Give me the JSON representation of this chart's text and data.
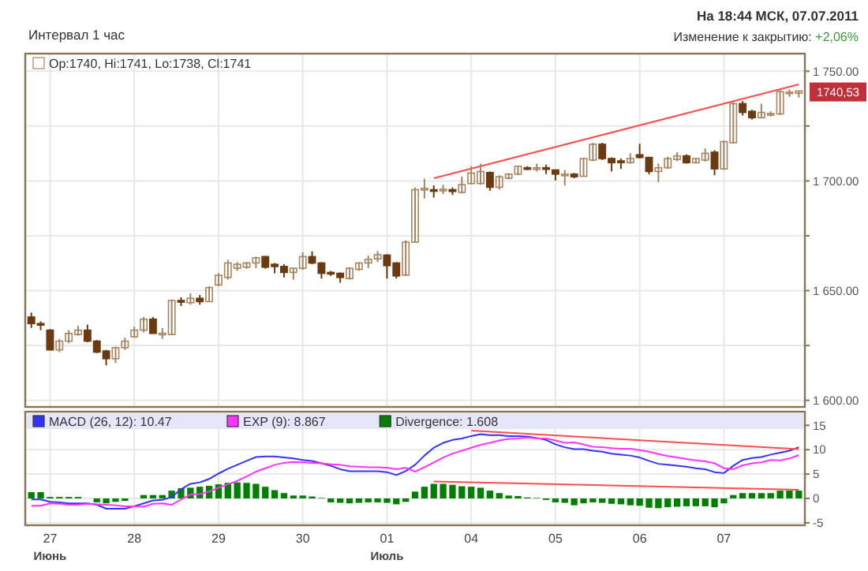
{
  "chart_data": [
    {
      "type": "candlestick",
      "subtitle": "Интервал 1 час",
      "annotations": [
        "На 18:44 МСК, 07.07.2011",
        "Изменение к закрытию: +2,06%",
        {
          "text": "1740,53",
          "y": 1740.53
        }
      ],
      "categories": [
        null,
        null,
        null,
        null,
        null,
        null,
        null,
        null,
        null,
        null,
        null,
        null,
        null,
        null,
        null,
        null,
        null,
        null,
        null,
        null,
        null,
        null,
        null,
        null,
        null,
        null,
        null,
        null,
        null,
        null,
        null,
        null,
        null,
        null,
        null,
        null,
        null,
        null,
        null,
        null,
        null,
        null,
        null,
        null,
        null,
        null,
        null,
        null,
        null,
        null,
        null,
        null,
        null,
        null,
        null,
        null,
        null,
        null,
        null,
        null,
        null,
        null,
        null,
        null,
        null,
        null,
        null,
        null,
        null,
        null,
        null,
        null,
        null,
        null,
        null,
        null,
        null,
        null,
        null,
        null,
        null,
        null,
        null
      ],
      "ylim": [
        1597,
        1758
      ],
      "yticks": [
        {
          "value": 1600,
          "label": "1 600.00"
        },
        {
          "value": 1625,
          "label": null
        },
        {
          "value": 1650,
          "label": "1 650.00"
        },
        {
          "value": 1675,
          "label": null
        },
        {
          "value": 1700,
          "label": "1 700.00"
        },
        {
          "value": 1725,
          "label": null
        },
        {
          "value": 1750,
          "label": "1 750.00"
        }
      ],
      "grid": true,
      "legend": "top left",
      "tick_labels": "y",
      "series": [
        {
          "name": "Op:1740, Hi:1741, Lo:1738, Cl:1741",
          "colors": [
            "#6b3a10",
            "#6b3a10",
            "#6b3a10",
            "#a68660",
            "#a68660",
            "#a68660",
            "#6b3a10",
            "#6b3a10",
            "#6b3a10",
            "#a68660",
            "#a68660",
            "#a68660",
            "#a68660",
            "#6b3a10",
            "#a68660",
            "#a68660",
            "#6b3a10",
            "#a68660",
            "#6b3a10",
            "#a68660",
            "#a68660",
            "#a68660",
            "#a68660",
            "#a68660",
            "#a68660",
            "#6b3a10",
            "#6b3a10",
            "#6b3a10",
            "#a68660",
            "#a68660",
            "#6b3a10",
            "#6b3a10",
            "#6b3a10",
            "#6b3a10",
            "#a68660",
            "#a68660",
            "#a68660",
            "#a68660",
            "#6b3a10",
            "#6b3a10",
            "#a68660",
            "#a68660",
            "#a68660",
            "#6b3a10",
            "#a68660",
            "#6b3a10",
            "#a68660",
            "#a68660",
            "#a68660",
            "#6b3a10",
            "#a68660",
            "#a68660",
            "#a68660",
            "#6b3a10",
            "#a68660",
            "#6b3a10",
            "#6b3a10",
            "#a68660",
            "#6b3a10",
            "#a68660",
            "#a68660",
            "#6b3a10",
            "#6b3a10",
            "#6b3a10",
            "#a68660",
            "#6b3a10",
            "#6b3a10",
            "#a68660",
            "#a68660",
            "#a68660",
            "#6b3a10",
            "#a68660",
            "#a68660",
            "#6b3a10",
            "#a68660",
            "#a68660",
            "#6b3a10",
            "#6b3a10",
            "#a68660",
            "#a68660",
            "#a68660",
            "#a68660",
            "#a68660"
          ],
          "ohlc": [
            [
              1638,
              1640,
              1633,
              1635
            ],
            [
              1635,
              1636,
              1632,
              1634.8
            ],
            [
              1632,
              1632.5,
              1623,
              1623
            ],
            [
              1623,
              1628,
              1622,
              1627
            ],
            [
              1627,
              1632,
              1626,
              1630.5
            ],
            [
              1630,
              1634,
              1629.5,
              1632
            ],
            [
              1632,
              1634.5,
              1626.5,
              1627
            ],
            [
              1627,
              1627.5,
              1621.5,
              1622
            ],
            [
              1622.5,
              1623,
              1616,
              1619
            ],
            [
              1619,
              1624.5,
              1617,
              1624
            ],
            [
              1624,
              1628.6,
              1623,
              1627
            ],
            [
              1629,
              1633.6,
              1628.5,
              1632
            ],
            [
              1632,
              1638,
              1631,
              1637
            ],
            [
              1637,
              1638,
              1630.5,
              1630.5
            ],
            [
              1630.4,
              1633,
              1628,
              1630.6
            ],
            [
              1630,
              1646,
              1629.8,
              1645.5
            ],
            [
              1645.5,
              1647,
              1643,
              1645
            ],
            [
              1644.5,
              1648.8,
              1643.6,
              1646.5
            ],
            [
              1646.5,
              1648,
              1643.6,
              1645
            ],
            [
              1645,
              1652,
              1644.8,
              1651.4
            ],
            [
              1652.6,
              1658,
              1652,
              1657
            ],
            [
              1656,
              1664,
              1655,
              1662.6
            ],
            [
              1660.2,
              1663,
              1659,
              1662
            ],
            [
              1660.7,
              1663,
              1660,
              1662.6
            ],
            [
              1662.6,
              1665.5,
              1660.2,
              1665
            ],
            [
              1665.5,
              1665.8,
              1660,
              1660.7
            ],
            [
              1662,
              1662.6,
              1657.9,
              1661
            ],
            [
              1661,
              1662,
              1656,
              1658.3
            ],
            [
              1658.3,
              1660.4,
              1655,
              1660.2
            ],
            [
              1660.2,
              1667.5,
              1659.5,
              1665.5
            ],
            [
              1665.5,
              1667.9,
              1662,
              1662.6
            ],
            [
              1662.6,
              1663,
              1655.5,
              1657.9
            ],
            [
              1658.3,
              1659,
              1656.7,
              1658
            ],
            [
              1657.9,
              1658.3,
              1653.6,
              1656
            ],
            [
              1655.5,
              1660.7,
              1655,
              1660.2
            ],
            [
              1659.7,
              1663,
              1659,
              1662.6
            ],
            [
              1662.6,
              1666,
              1660.2,
              1664.3
            ],
            [
              1664.5,
              1668,
              1663,
              1666.4
            ],
            [
              1666.2,
              1666.6,
              1655.5,
              1661.4
            ],
            [
              1662.6,
              1663,
              1655.5,
              1656.7
            ],
            [
              1657.1,
              1673,
              1656.7,
              1672.1
            ],
            [
              1672.1,
              1697,
              1672,
              1696
            ],
            [
              1696,
              1701,
              1692,
              1696.6
            ],
            [
              1696,
              1698,
              1692.4,
              1695.5
            ],
            [
              1695.8,
              1698.3,
              1694,
              1696.2
            ],
            [
              1696,
              1697,
              1693.6,
              1695.2
            ],
            [
              1694.8,
              1702,
              1694.3,
              1698.3
            ],
            [
              1698.8,
              1706.7,
              1698.5,
              1703.6
            ],
            [
              1698.8,
              1707.9,
              1698.3,
              1704.3
            ],
            [
              1703.8,
              1704.3,
              1695.5,
              1697.1
            ],
            [
              1697.1,
              1702.6,
              1696,
              1701.9
            ],
            [
              1701.2,
              1703.6,
              1700.7,
              1703.1
            ],
            [
              1703.1,
              1707,
              1702.6,
              1706.7
            ],
            [
              1706,
              1706.7,
              1705,
              1705.7
            ],
            [
              1705.7,
              1707.9,
              1704.3,
              1706
            ],
            [
              1706,
              1707.4,
              1703.1,
              1705.8
            ],
            [
              1705,
              1705.2,
              1700.2,
              1703.1
            ],
            [
              1703,
              1705,
              1697.9,
              1703.1
            ],
            [
              1703.1,
              1703.6,
              1701.2,
              1701.9
            ],
            [
              1702.1,
              1710.5,
              1701.9,
              1710.2
            ],
            [
              1709.5,
              1717.4,
              1709,
              1716.7
            ],
            [
              1716.7,
              1717.4,
              1709.5,
              1710.2
            ],
            [
              1710.2,
              1710.7,
              1704.3,
              1708.3
            ],
            [
              1709.1,
              1710.2,
              1705.5,
              1709
            ],
            [
              1708.3,
              1712.6,
              1707.9,
              1710.2
            ],
            [
              1711.9,
              1716.9,
              1710.2,
              1710.7
            ],
            [
              1710.7,
              1711,
              1703,
              1704.3
            ],
            [
              1704.3,
              1707.9,
              1699.5,
              1706
            ],
            [
              1706,
              1711,
              1705.5,
              1710.2
            ],
            [
              1709.8,
              1713.1,
              1709,
              1711.4
            ],
            [
              1711.4,
              1712.1,
              1707.9,
              1708.3
            ],
            [
              1708.3,
              1710.5,
              1707.9,
              1710.2
            ],
            [
              1709.5,
              1714.8,
              1708.8,
              1712.6
            ],
            [
              1713.1,
              1714,
              1702.6,
              1705.5
            ],
            [
              1705.5,
              1718.4,
              1705,
              1717.9
            ],
            [
              1717.4,
              1736,
              1717,
              1735.2
            ],
            [
              1735.2,
              1736.4,
              1729.8,
              1731.2
            ],
            [
              1731.7,
              1732.4,
              1728,
              1728.8
            ],
            [
              1728.8,
              1735.2,
              1728.6,
              1731.2
            ],
            [
              1730.4,
              1731.7,
              1729.3,
              1730.7
            ],
            [
              1730.5,
              1741.4,
              1730,
              1740.7
            ],
            [
              1740,
              1741.7,
              1738.3,
              1740.5
            ],
            [
              1740,
              1741,
              1738,
              1741
            ]
          ]
        },
        {
          "type": "line",
          "color": "#ff4d4d",
          "values": [
            null,
            null,
            null,
            null,
            null,
            null,
            null,
            null,
            null,
            null,
            null,
            null,
            null,
            null,
            null,
            null,
            null,
            null,
            null,
            null,
            null,
            null,
            null,
            null,
            null,
            null,
            null,
            null,
            null,
            null,
            null,
            null,
            null,
            null,
            null,
            null,
            null,
            null,
            null,
            null,
            null,
            null,
            null,
            1701.2,
            null,
            null,
            null,
            null,
            null,
            null,
            null,
            null,
            null,
            null,
            null,
            null,
            null,
            null,
            null,
            null,
            null,
            null,
            null,
            null,
            null,
            null,
            null,
            null,
            null,
            null,
            null,
            null,
            null,
            null,
            null,
            null,
            null,
            null,
            null,
            null,
            null,
            null,
            1744
          ]
        }
      ]
    },
    {
      "type": "line",
      "categories": [
        null,
        null,
        "27\nИюнь",
        null,
        null,
        null,
        null,
        null,
        null,
        null,
        null,
        "28",
        null,
        null,
        null,
        null,
        null,
        null,
        null,
        null,
        "29",
        null,
        null,
        null,
        null,
        null,
        null,
        null,
        null,
        "30",
        null,
        null,
        null,
        null,
        null,
        null,
        null,
        null,
        "01\nИюль",
        null,
        null,
        null,
        null,
        null,
        null,
        null,
        null,
        "04",
        null,
        null,
        null,
        null,
        null,
        null,
        null,
        null,
        "05",
        null,
        null,
        null,
        null,
        null,
        null,
        null,
        null,
        "06",
        null,
        null,
        null,
        null,
        null,
        null,
        null,
        null,
        "07",
        null,
        null,
        null,
        null,
        null,
        null,
        null,
        null
      ],
      "ylim": [
        -5.5,
        17.8
      ],
      "yticks": [
        -5,
        0,
        5,
        10,
        15
      ],
      "grid": true,
      "legend": "top",
      "series": [
        {
          "name": "MACD (26, 12): 10.47",
          "color": "#3333ff",
          "values": [
            -0.2,
            -0.2,
            -0.7,
            -0.8,
            -1.0,
            -1.0,
            -1.0,
            -1.3,
            -2.1,
            -2.1,
            -2.1,
            -1.6,
            -1.0,
            -0.4,
            -0.3,
            0.3,
            1.9,
            3.0,
            3.3,
            4.0,
            5.1,
            6.1,
            6.9,
            7.7,
            8.5,
            8.6,
            8.6,
            8.4,
            8.2,
            7.9,
            7.7,
            7.2,
            6.7,
            6.0,
            5.6,
            5.6,
            5.6,
            5.6,
            5.4,
            4.8,
            5.6,
            6.9,
            8.8,
            10.4,
            11.4,
            12.0,
            12.3,
            12.8,
            13.2,
            13.0,
            13.0,
            12.8,
            12.8,
            12.7,
            12.4,
            12.0,
            11.1,
            10.5,
            10.1,
            10.1,
            9.8,
            9.6,
            9.2,
            9.0,
            8.8,
            8.4,
            7.7,
            7.1,
            6.9,
            6.7,
            6.5,
            6.2,
            6.0,
            5.4,
            5.2,
            6.7,
            7.9,
            8.3,
            8.5,
            9.0,
            9.4,
            9.8,
            10.5
          ]
        },
        {
          "name": "EXP (9): 8.867",
          "color": "#ff33ff",
          "values": [
            -1.5,
            -1.5,
            -1.0,
            -1.1,
            -1.3,
            -1.3,
            -1.1,
            -1.2,
            -1.3,
            -1.4,
            -1.6,
            -1.6,
            -1.7,
            -1.1,
            -1.0,
            -1.3,
            -0.2,
            0.8,
            0.9,
            1.4,
            2.2,
            2.9,
            3.6,
            4.5,
            5.5,
            6.2,
            6.9,
            7.3,
            7.5,
            7.4,
            7.3,
            7.2,
            7.0,
            6.9,
            6.6,
            6.5,
            6.4,
            6.4,
            6.3,
            6.0,
            6.3,
            5.5,
            6.4,
            7.4,
            8.4,
            9.2,
            9.8,
            10.4,
            11.0,
            11.4,
            11.9,
            12.2,
            12.3,
            12.5,
            12.3,
            12.3,
            11.9,
            11.4,
            11.5,
            11.1,
            10.6,
            10.5,
            10.3,
            10.2,
            10.2,
            9.9,
            9.6,
            9.1,
            8.7,
            8.4,
            8.1,
            7.8,
            7.6,
            7.2,
            6.2,
            6.0,
            6.8,
            7.2,
            7.4,
            7.9,
            7.8,
            8.2,
            8.9
          ]
        },
        {
          "name": "Divergence: 1.608",
          "type": "bar",
          "color": "#008000",
          "values": [
            1.3,
            1.3,
            0.3,
            0.3,
            0.3,
            0.3,
            0,
            -0.8,
            -1.0,
            -0.7,
            -0.5,
            0,
            0.7,
            0.7,
            0.7,
            1.6,
            2.1,
            2.2,
            2.4,
            2.6,
            2.9,
            3.2,
            3.3,
            3.2,
            3.0,
            2.4,
            1.7,
            1.1,
            0.6,
            0.6,
            0.4,
            0.1,
            -0.8,
            -0.9,
            -1.0,
            -0.9,
            -0.8,
            -0.8,
            -0.9,
            -1.2,
            -0.7,
            1.4,
            2.4,
            3.0,
            3.0,
            2.8,
            2.5,
            2.4,
            2.2,
            1.6,
            1.1,
            0.6,
            0.5,
            0.2,
            0.1,
            -0.3,
            -0.8,
            -0.9,
            -1.4,
            -1.0,
            -0.8,
            -0.9,
            -1.1,
            -1.2,
            -1.4,
            -1.5,
            -1.9,
            -2.0,
            -1.8,
            -1.7,
            -1.6,
            -1.6,
            -1.6,
            -1.8,
            -1.0,
            0.7,
            1.1,
            1.1,
            1.1,
            1.1,
            1.6,
            1.6,
            1.6
          ]
        },
        {
          "color": "#ff4d4d",
          "values": [
            null,
            null,
            null,
            null,
            null,
            null,
            null,
            null,
            null,
            null,
            null,
            null,
            null,
            null,
            null,
            null,
            null,
            null,
            null,
            null,
            null,
            null,
            null,
            null,
            null,
            null,
            null,
            null,
            null,
            null,
            null,
            null,
            null,
            null,
            null,
            null,
            null,
            null,
            null,
            null,
            null,
            null,
            null,
            null,
            null,
            null,
            null,
            13.9,
            null,
            null,
            null,
            null,
            null,
            null,
            null,
            null,
            null,
            null,
            null,
            null,
            null,
            null,
            null,
            null,
            null,
            null,
            null,
            null,
            null,
            null,
            null,
            null,
            null,
            null,
            null,
            null,
            null,
            null,
            null,
            null,
            null,
            null,
            10.1
          ]
        },
        {
          "color": "#ff4d4d",
          "values": [
            null,
            null,
            null,
            null,
            null,
            null,
            null,
            null,
            null,
            null,
            null,
            null,
            null,
            null,
            null,
            null,
            null,
            null,
            null,
            null,
            null,
            null,
            null,
            null,
            null,
            null,
            null,
            null,
            null,
            null,
            null,
            null,
            null,
            null,
            null,
            null,
            null,
            null,
            null,
            null,
            null,
            null,
            null,
            3.5,
            null,
            null,
            null,
            null,
            null,
            null,
            null,
            null,
            null,
            null,
            null,
            null,
            null,
            null,
            null,
            null,
            null,
            null,
            null,
            null,
            null,
            null,
            null,
            null,
            null,
            null,
            null,
            null,
            null,
            null,
            null,
            null,
            null,
            null,
            null,
            null,
            null,
            null,
            1.8
          ]
        }
      ]
    }
  ]
}
